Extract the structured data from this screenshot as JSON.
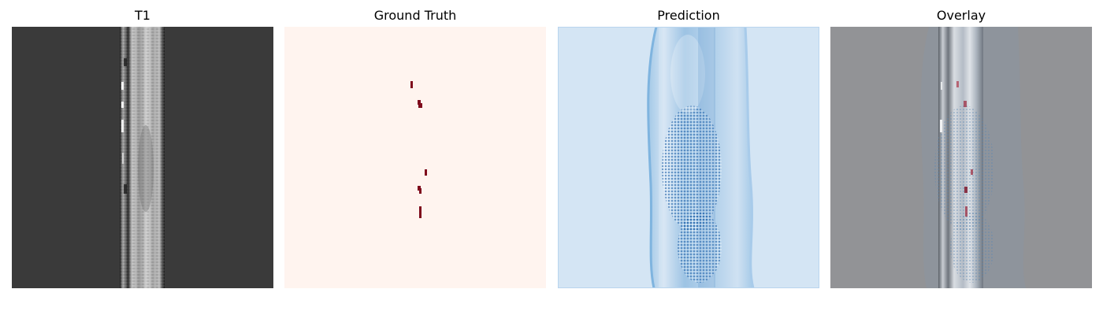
{
  "panels": [
    {
      "id": "t1",
      "title": "T1"
    },
    {
      "id": "gt",
      "title": "Ground Truth"
    },
    {
      "id": "pred",
      "title": "Prediction"
    },
    {
      "id": "overlay",
      "title": "Overlay"
    }
  ],
  "colors": {
    "t1_background": "#3a3a3a",
    "gt_background": "#fff4ef",
    "gt_lesion": "#7f0a1c",
    "pred_background": "#d4e5f4",
    "pred_strong": "#2a74b8",
    "overlay_background": "#929396"
  }
}
